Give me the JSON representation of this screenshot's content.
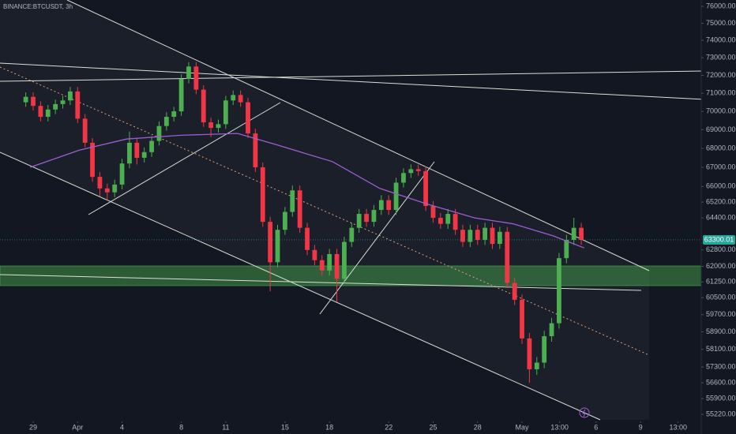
{
  "chart_data": {
    "type": "candlestick",
    "title": "BINANCE:BTCUSDT, 3h",
    "log_scale": true,
    "grid": false,
    "up_color": "#4caf50",
    "down_color": "#f23645",
    "xlim": [
      -2.24,
      45.1
    ],
    "ylim": [
      54982,
      76376
    ],
    "xticks": [
      {
        "value": 0,
        "label": "29"
      },
      {
        "value": 3,
        "label": "Apr"
      },
      {
        "value": 6,
        "label": "4"
      },
      {
        "value": 10,
        "label": "8"
      },
      {
        "value": 13,
        "label": "11"
      },
      {
        "value": 17,
        "label": "15"
      },
      {
        "value": 20,
        "label": "18"
      },
      {
        "value": 24,
        "label": "22"
      },
      {
        "value": 27,
        "label": "25"
      },
      {
        "value": 30,
        "label": "28"
      },
      {
        "value": 33,
        "label": "May"
      },
      {
        "value": 35.54,
        "label": "13:00"
      },
      {
        "value": 38,
        "label": "6"
      },
      {
        "value": 41,
        "label": "9"
      },
      {
        "value": 43.54,
        "label": "13:00"
      }
    ],
    "yticks": [
      {
        "value": 76000,
        "label": "76000.00"
      },
      {
        "value": 75000,
        "label": "75000.00"
      },
      {
        "value": 74000,
        "label": "74000.00"
      },
      {
        "value": 73000,
        "label": "73000.00"
      },
      {
        "value": 72000,
        "label": "72000.00"
      },
      {
        "value": 71000,
        "label": "71000.00"
      },
      {
        "value": 70000,
        "label": "70000.00"
      },
      {
        "value": 69000,
        "label": "69000.00"
      },
      {
        "value": 68000,
        "label": "68000.00"
      },
      {
        "value": 67000,
        "label": "67000.00"
      },
      {
        "value": 66000,
        "label": "66000.00"
      },
      {
        "value": 65200,
        "label": "65200.00"
      },
      {
        "value": 64400,
        "label": "64400.00"
      },
      {
        "value": 62800,
        "label": "62800.00"
      },
      {
        "value": 62000,
        "label": "62000.00"
      },
      {
        "value": 61250,
        "label": "61250.00"
      },
      {
        "value": 60500,
        "label": "60500.00"
      },
      {
        "value": 59700,
        "label": "59700.00"
      },
      {
        "value": 58900,
        "label": "58900.00"
      },
      {
        "value": 58100,
        "label": "58100.00"
      },
      {
        "value": 57300,
        "label": "57300.00"
      },
      {
        "value": 56600,
        "label": "56600.00"
      },
      {
        "value": 55900,
        "label": "55900.00"
      },
      {
        "value": 55220,
        "label": "55220.00"
      }
    ],
    "last_price": {
      "value": 63300.01,
      "label": "63300.01",
      "color": "#26a69a"
    },
    "x": [
      -0.5,
      0,
      0.5,
      1,
      1.5,
      2,
      2.5,
      3,
      3.5,
      4,
      4.5,
      5,
      5.5,
      6,
      6.5,
      7,
      7.5,
      8,
      8.5,
      9,
      9.5,
      10,
      10.5,
      11,
      11.5,
      12,
      12.5,
      13,
      13.5,
      14,
      14.5,
      15,
      15.5,
      16,
      16.5,
      17,
      17.5,
      18,
      18.5,
      19,
      19.5,
      20,
      20.5,
      21,
      21.5,
      22,
      22.5,
      23,
      23.5,
      24,
      24.5,
      25,
      25.5,
      26,
      26.5,
      27,
      27.5,
      28,
      28.5,
      29,
      29.5,
      30,
      30.5,
      31,
      31.5,
      32,
      32.5,
      33,
      33.5,
      34,
      34.5,
      35,
      35.5,
      36,
      36.5,
      37
    ],
    "open": [
      70500,
      70800,
      70300,
      69700,
      70100,
      70400,
      70600,
      71100,
      69600,
      68300,
      66500,
      65900,
      65700,
      66100,
      67200,
      68300,
      67500,
      67800,
      68400,
      69200,
      69700,
      70000,
      71800,
      72500,
      71200,
      69400,
      69100,
      69300,
      70600,
      70900,
      70500,
      68800,
      67000,
      64200,
      62200,
      63800,
      64700,
      65800,
      63900,
      62800,
      62300,
      61800,
      62600,
      61400,
      63200,
      63900,
      64600,
      64200,
      64800,
      65300,
      64800,
      66200,
      66700,
      66900,
      66800,
      65000,
      64400,
      64100,
      64600,
      63800,
      63200,
      63800,
      63300,
      63900,
      63100,
      63700,
      61200,
      60400,
      58600,
      57200,
      57500,
      58700,
      59300,
      62400,
      63300,
      63900
    ],
    "high": [
      71050,
      71050,
      70550,
      70350,
      70650,
      70850,
      71350,
      71350,
      69850,
      68550,
      66750,
      66150,
      66350,
      67450,
      68900,
      68550,
      68050,
      68650,
      69450,
      69950,
      70250,
      72050,
      72750,
      72750,
      71450,
      69650,
      69550,
      70850,
      71150,
      71150,
      70750,
      69050,
      67250,
      64450,
      64050,
      64950,
      66050,
      66050,
      64150,
      63050,
      62550,
      62850,
      62850,
      63450,
      64150,
      64850,
      64850,
      65050,
      65550,
      65550,
      66450,
      66950,
      67150,
      67150,
      67050,
      65250,
      64650,
      64850,
      64850,
      64050,
      64050,
      64050,
      64150,
      64150,
      63950,
      63950,
      61450,
      60650,
      58850,
      57750,
      58950,
      59550,
      62650,
      63550,
      64400,
      64150
    ],
    "low": [
      70250,
      70050,
      69450,
      69450,
      69850,
      70150,
      70350,
      69350,
      68050,
      66250,
      65500,
      65300,
      65450,
      65850,
      66950,
      67150,
      67250,
      67550,
      68150,
      68950,
      69450,
      69750,
      71550,
      70950,
      69150,
      68600,
      68850,
      69050,
      70350,
      70250,
      68550,
      66750,
      63950,
      60800,
      61950,
      63550,
      64450,
      63650,
      62550,
      62050,
      61550,
      61550,
      60300,
      61150,
      62950,
      63650,
      63950,
      63950,
      64550,
      64550,
      64550,
      65950,
      66450,
      66550,
      64750,
      64150,
      63850,
      63850,
      63550,
      62950,
      62950,
      63050,
      63050,
      62850,
      62850,
      60950,
      60150,
      58350,
      56600,
      56950,
      57250,
      58450,
      59050,
      62150,
      63050,
      63050
    ],
    "close": [
      70800,
      70300,
      69700,
      70100,
      70400,
      70600,
      71100,
      69600,
      68300,
      66500,
      65900,
      65700,
      66100,
      67200,
      68300,
      67500,
      67800,
      68400,
      69200,
      69700,
      70000,
      71800,
      72500,
      71200,
      69400,
      69100,
      69300,
      70600,
      70900,
      70500,
      68800,
      67000,
      64200,
      62200,
      63800,
      64700,
      65800,
      63900,
      62800,
      62300,
      61800,
      62600,
      61400,
      63200,
      63900,
      64600,
      64200,
      64800,
      65300,
      64800,
      66200,
      66700,
      66900,
      66800,
      65000,
      64400,
      64100,
      64600,
      63800,
      63200,
      63800,
      63300,
      63900,
      63100,
      63700,
      61200,
      60400,
      58600,
      57200,
      57500,
      58700,
      59300,
      62400,
      63300,
      63900,
      63300
    ],
    "moving_average": {
      "color": "#9c5fd0",
      "x": [
        -0.2,
        3.1,
        6.3,
        10.0,
        13.8,
        16.4,
        20.2,
        23.4,
        26.6,
        29.8,
        32.4,
        35.1,
        37.2
      ],
      "values": [
        67000,
        67900,
        68500,
        68700,
        68800,
        68200,
        67300,
        65900,
        65100,
        64400,
        64100,
        63500,
        62900
      ]
    }
  }
}
